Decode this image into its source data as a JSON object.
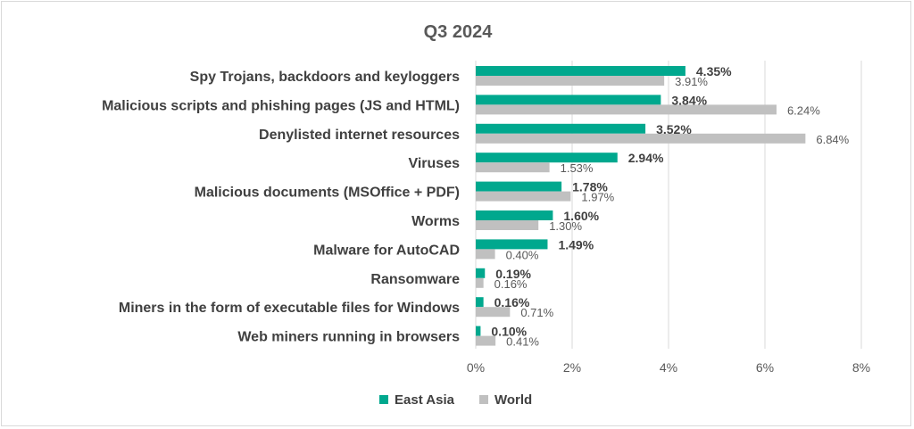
{
  "chart_data": {
    "type": "bar",
    "orientation": "horizontal",
    "title": "Q3 2024",
    "categories": [
      "Spy Trojans, backdoors and keyloggers",
      "Malicious scripts and phishing pages (JS and HTML)",
      "Denylisted internet resources",
      "Viruses",
      "Malicious documents (MSOffice + PDF)",
      "Worms",
      "Malware for AutoCAD",
      "Ransomware",
      "Miners in the form of executable files for Windows",
      "Web miners running in browsers"
    ],
    "series": [
      {
        "name": "East Asia",
        "color": "#00A88E",
        "values": [
          4.35,
          3.84,
          3.52,
          2.94,
          1.78,
          1.6,
          1.49,
          0.19,
          0.16,
          0.1
        ],
        "labels": [
          "4.35%",
          "3.84%",
          "3.52%",
          "2.94%",
          "1.78%",
          "1.60%",
          "1.49%",
          "0.19%",
          "0.16%",
          "0.10%"
        ]
      },
      {
        "name": "World",
        "color": "#C0C0C0",
        "values": [
          3.91,
          6.24,
          6.84,
          1.53,
          1.97,
          1.3,
          0.4,
          0.16,
          0.71,
          0.41
        ],
        "labels": [
          "3.91%",
          "6.24%",
          "6.84%",
          "1.53%",
          "1.97%",
          "1.30%",
          "0.40%",
          "0.16%",
          "0.71%",
          "0.41%"
        ]
      }
    ],
    "xlim": [
      0,
      8
    ],
    "xticks": [
      0,
      2,
      4,
      6,
      8
    ],
    "xtick_labels": [
      "0%",
      "2%",
      "4%",
      "6%",
      "8%"
    ],
    "grid": "vertical",
    "legend": "bottom"
  }
}
